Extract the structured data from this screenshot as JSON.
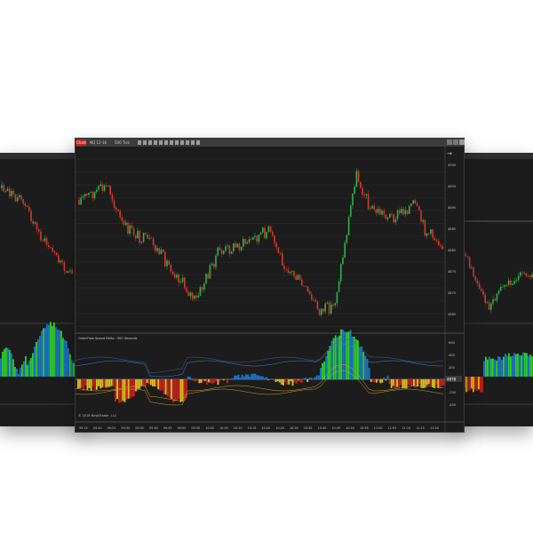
{
  "main_window": {
    "logo_label": "Chart",
    "instrument": "NQ 12-16",
    "interval": "500 Tick",
    "indicator_label": "OrderFlow Speed Delta - 500 Seconds",
    "copyright": "© 2016 NinjaTrader, LLC",
    "price_labels": [
      "4900",
      "4895",
      "4890",
      "4885",
      "4880",
      "4875",
      "4870",
      "4865"
    ],
    "oscillator_labels": [
      "600",
      "400",
      "200",
      "0",
      "-200",
      "-400"
    ],
    "current_price": "4878",
    "time_labels": [
      "09:15",
      "09:20",
      "09:25",
      "09:30",
      "09:35",
      "09:40",
      "09:45",
      "09:50",
      "09:55",
      "10:00",
      "10:05",
      "10:10",
      "10:15",
      "10:20",
      "10:25",
      "10:30",
      "10:35",
      "10:40",
      "10:45",
      "10:50",
      "10:55",
      "11:00",
      "11:05",
      "11:10",
      "11:15",
      "11:20"
    ]
  },
  "colors": {
    "background": "#1c1c1c",
    "up_candle": "#2fb24a",
    "down_candle": "#d23b2b",
    "histogram_up_green": "#2ad12a",
    "histogram_up_blue": "#1e73c8",
    "histogram_down_red": "#c81e1e",
    "histogram_down_yellow": "#d6c21a"
  },
  "icons": [
    "chart-logo-icon",
    "draw-tool-icon",
    "zoom-icon",
    "window-minimize-icon",
    "window-maximize-icon",
    "window-close-icon",
    "scroll-arrow-icon"
  ]
}
